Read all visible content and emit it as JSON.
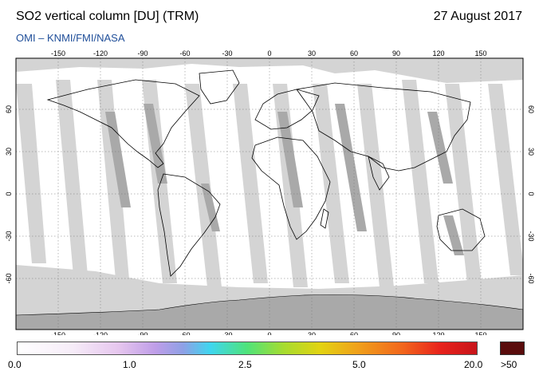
{
  "header": {
    "title": "SO2 vertical column [DU] (TRM)",
    "date": "27 August 2017",
    "credit": "OMI  –  KNMI/FMI/NASA"
  },
  "map": {
    "lon_ticks": [
      "-150",
      "-120",
      "-90",
      "-60",
      "-30",
      "0",
      "30",
      "60",
      "90",
      "120",
      "150"
    ],
    "lat_ticks": [
      "60",
      "30",
      "0",
      "-30",
      "-60"
    ],
    "colors": {
      "no_data": "#d4d4d4",
      "overlap": "#a9a9a9",
      "land_outline": "#000000",
      "grid": "#777777"
    }
  },
  "colorbar": {
    "labels": [
      "0.0",
      "1.0",
      "2.5",
      "5.0",
      "20.0"
    ],
    "overflow_label": ">50",
    "overflow_color": "#5a0c0c"
  }
}
